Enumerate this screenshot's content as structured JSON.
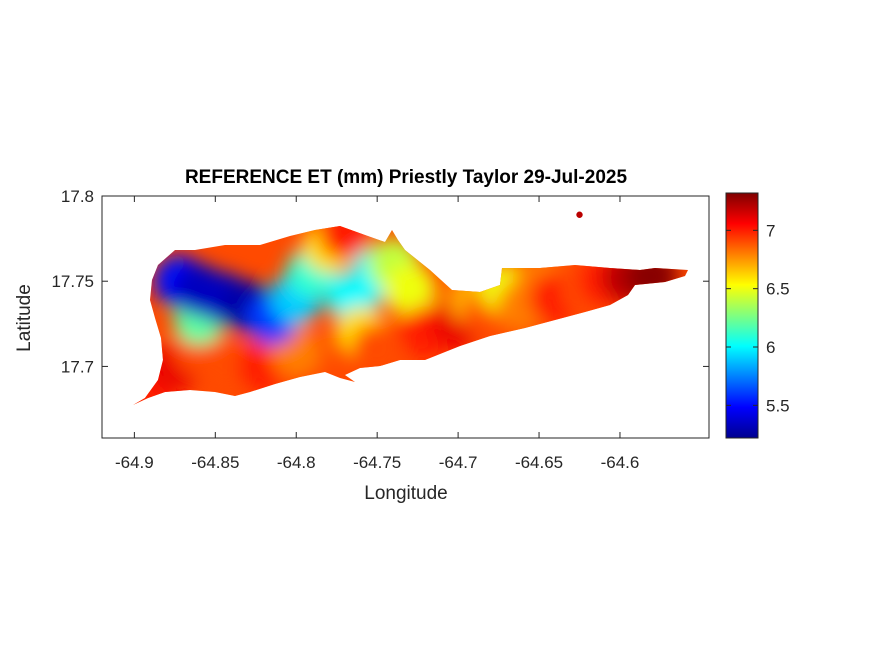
{
  "chart_data": {
    "type": "heatmap",
    "title": "REFERENCE ET (mm) Priestly Taylor 29-Jul-2025",
    "xlabel": "Longitude",
    "ylabel": "Latitude",
    "xlim": [
      -64.92,
      -64.545
    ],
    "ylim": [
      17.658,
      17.8
    ],
    "xticks": [
      -64.9,
      -64.85,
      -64.8,
      -64.75,
      -64.7,
      -64.65,
      -64.6
    ],
    "xtick_labels": [
      "-64.9",
      "-64.85",
      "-64.8",
      "-64.75",
      "-64.7",
      "-64.65",
      "-64.6"
    ],
    "yticks": [
      17.7,
      17.75,
      17.8
    ],
    "ytick_labels": [
      "17.7",
      "17.75",
      "17.8"
    ],
    "colorbar": {
      "colormap": "jet",
      "range": [
        5.22,
        7.32
      ],
      "ticks": [
        5.5,
        6,
        6.5,
        7
      ],
      "tick_labels": [
        "5.5",
        "6",
        "6.5",
        "7"
      ]
    },
    "grid": false,
    "field_points": [
      {
        "lon": -64.89,
        "lat": 17.688,
        "value": 7.0
      },
      {
        "lon": -64.875,
        "lat": 17.7,
        "value": 7.1
      },
      {
        "lon": -64.86,
        "lat": 17.71,
        "value": 6.9
      },
      {
        "lon": -64.84,
        "lat": 17.7,
        "value": 6.9
      },
      {
        "lon": -64.82,
        "lat": 17.7,
        "value": 7.0
      },
      {
        "lon": -64.8,
        "lat": 17.708,
        "value": 6.8
      },
      {
        "lon": -64.86,
        "lat": 17.728,
        "value": 6.2
      },
      {
        "lon": -64.872,
        "lat": 17.75,
        "value": 5.5
      },
      {
        "lon": -64.86,
        "lat": 17.745,
        "value": 5.35
      },
      {
        "lon": -64.845,
        "lat": 17.74,
        "value": 5.35
      },
      {
        "lon": -64.83,
        "lat": 17.735,
        "value": 5.3
      },
      {
        "lon": -64.815,
        "lat": 17.728,
        "value": 5.6
      },
      {
        "lon": -64.8,
        "lat": 17.74,
        "value": 5.9
      },
      {
        "lon": -64.79,
        "lat": 17.755,
        "value": 6.1
      },
      {
        "lon": -64.78,
        "lat": 17.77,
        "value": 6.6
      },
      {
        "lon": -64.77,
        "lat": 17.778,
        "value": 7.0
      },
      {
        "lon": -64.765,
        "lat": 17.74,
        "value": 6.0
      },
      {
        "lon": -64.75,
        "lat": 17.755,
        "value": 6.0
      },
      {
        "lon": -64.74,
        "lat": 17.76,
        "value": 6.4
      },
      {
        "lon": -64.76,
        "lat": 17.72,
        "value": 6.6
      },
      {
        "lon": -64.75,
        "lat": 17.71,
        "value": 6.9
      },
      {
        "lon": -64.73,
        "lat": 17.745,
        "value": 6.5
      },
      {
        "lon": -64.72,
        "lat": 17.72,
        "value": 7.0
      },
      {
        "lon": -64.7,
        "lat": 17.725,
        "value": 7.1
      },
      {
        "lon": -64.69,
        "lat": 17.74,
        "value": 6.7
      },
      {
        "lon": -64.68,
        "lat": 17.73,
        "value": 6.9
      },
      {
        "lon": -64.67,
        "lat": 17.745,
        "value": 6.5
      },
      {
        "lon": -64.66,
        "lat": 17.735,
        "value": 6.8
      },
      {
        "lon": -64.65,
        "lat": 17.75,
        "value": 6.8
      },
      {
        "lon": -64.64,
        "lat": 17.74,
        "value": 7.0
      },
      {
        "lon": -64.62,
        "lat": 17.745,
        "value": 6.9
      },
      {
        "lon": -64.61,
        "lat": 17.75,
        "value": 7.0
      },
      {
        "lon": -64.595,
        "lat": 17.752,
        "value": 7.2
      },
      {
        "lon": -64.58,
        "lat": 17.753,
        "value": 7.3
      },
      {
        "lon": -64.625,
        "lat": 17.789,
        "value": 7.2
      }
    ]
  }
}
